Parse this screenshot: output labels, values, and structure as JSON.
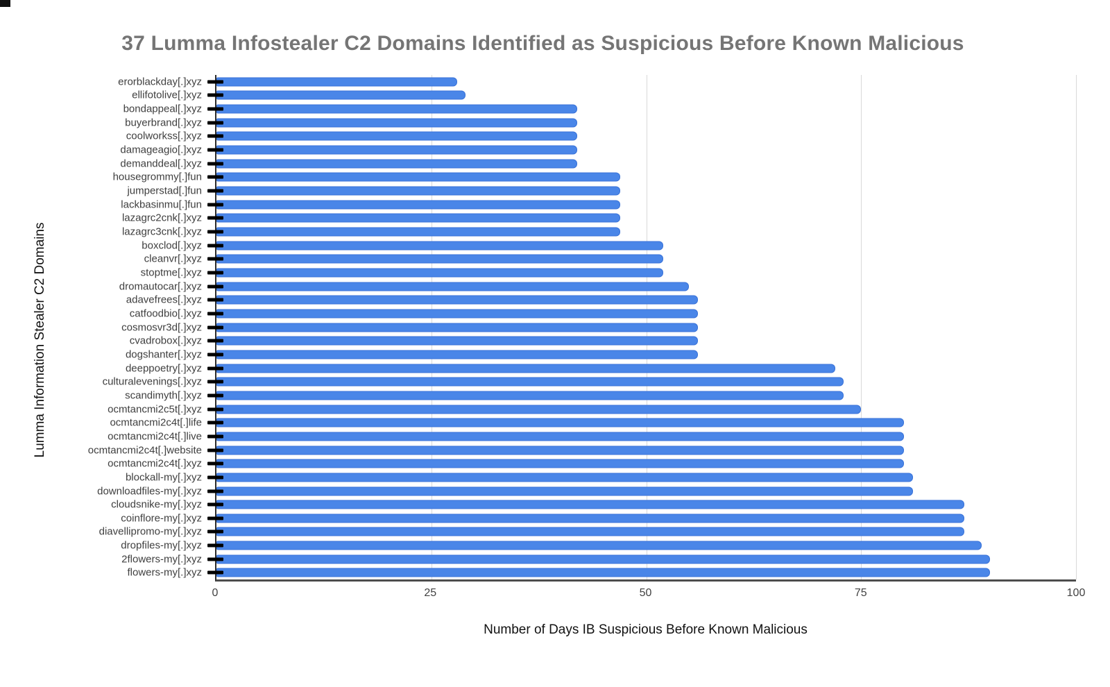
{
  "chart_data": {
    "type": "bar",
    "orientation": "horizontal",
    "title": "37 Lumma Infostealer C2 Domains Identified as Suspicious Before Known Malicious",
    "xlabel": "Number of Days IB Suspicious Before Known Malicious",
    "ylabel": "Lumma Information Stealer C2 Domains",
    "xlim": [
      0,
      100
    ],
    "x_ticks": [
      0,
      25,
      50,
      75,
      100
    ],
    "grid": "vertical-gridlines-on",
    "legend": "none",
    "bar_color": "#4a86e8",
    "categories": [
      "erorblackday[.]xyz",
      "ellifotolive[.]xyz",
      "bondappeal[.]xyz",
      "buyerbrand[.]xyz",
      "coolworkss[.]xyz",
      "damageagio[.]xyz",
      "demanddeal[.]xyz",
      "housegrommy[.]fun",
      "jumperstad[.]fun",
      "lackbasinmu[.]fun",
      "lazagrc2cnk[.]xyz",
      "lazagrc3cnk[.]xyz",
      "boxclod[.]xyz",
      "cleanvr[.]xyz",
      "stoptme[.]xyz",
      "dromautocar[.]xyz",
      "adavefrees[.]xyz",
      "catfoodbio[.]xyz",
      "cosmosvr3d[.]xyz",
      "cvadrobox[.]xyz",
      "dogshanter[.]xyz",
      "deeppoetry[.]xyz",
      "culturalevenings[.]xyz",
      "scandimyth[.]xyz",
      "ocmtancmi2c5t[.]xyz",
      "ocmtancmi2c4t[.]life",
      "ocmtancmi2c4t[.]live",
      "ocmtancmi2c4t[.]website",
      "ocmtancmi2c4t[.]xyz",
      "blockall-my[.]xyz",
      "downloadfiles-my[.]xyz",
      "cloudsnike-my[.]xyz",
      "coinflore-my[.]xyz",
      "diavellipromo-my[.]xyz",
      "dropfiles-my[.]xyz",
      "2flowers-my[.]xyz",
      "flowers-my[.]xyz"
    ],
    "values": [
      28,
      29,
      42,
      42,
      42,
      42,
      42,
      47,
      47,
      47,
      47,
      47,
      52,
      52,
      52,
      55,
      56,
      56,
      56,
      56,
      56,
      72,
      73,
      73,
      75,
      80,
      80,
      80,
      80,
      81,
      81,
      87,
      87,
      87,
      89,
      90,
      90
    ]
  },
  "colors": {
    "title_text": "#757575",
    "bar_fill": "#4a86e8",
    "axis_line": "#2b2b2b",
    "gridline": "#d9d9d9",
    "tick_label": "#424242",
    "category_label": "#3f3f3f"
  }
}
